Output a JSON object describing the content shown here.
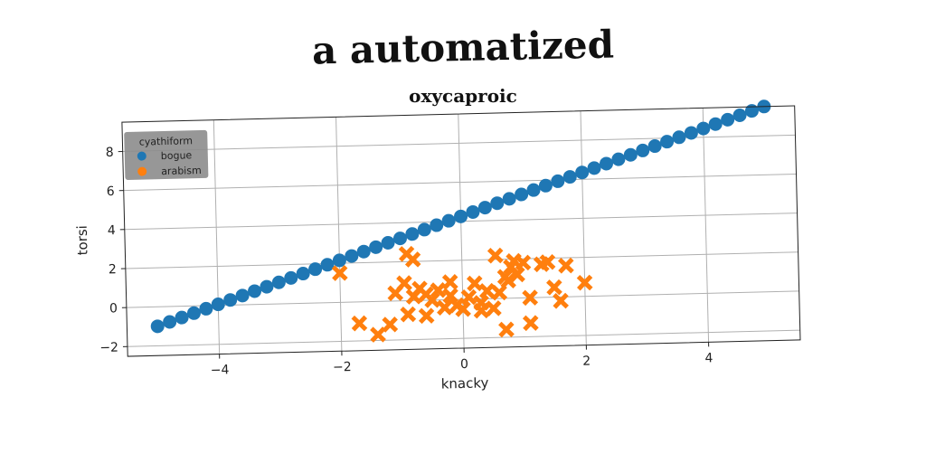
{
  "suptitle": "a automatized",
  "chart_data": {
    "type": "scatter",
    "title": "oxycaproic",
    "xlabel": "knacky",
    "ylabel": "torsi",
    "xlim": [
      -5.5,
      5.5
    ],
    "ylim": [
      -2.5,
      9.5
    ],
    "xticks": [
      -4,
      -2,
      0,
      2,
      4
    ],
    "yticks": [
      -2,
      0,
      2,
      4,
      6,
      8
    ],
    "grid": true,
    "legend": {
      "title": "cyathiform",
      "placement": "top-left"
    },
    "series": [
      {
        "name": "bogue",
        "marker": "circle",
        "color": "#1f77b4",
        "x": [
          -5.0,
          -4.8,
          -4.6,
          -4.4,
          -4.2,
          -4.0,
          -3.8,
          -3.6,
          -3.4,
          -3.2,
          -3.0,
          -2.8,
          -2.6,
          -2.4,
          -2.2,
          -2.0,
          -1.8,
          -1.6,
          -1.4,
          -1.2,
          -1.0,
          -0.8,
          -0.6,
          -0.4,
          -0.2,
          0.0,
          0.2,
          0.4,
          0.6,
          0.8,
          1.0,
          1.2,
          1.4,
          1.6,
          1.8,
          2.0,
          2.2,
          2.4,
          2.6,
          2.8,
          3.0,
          3.2,
          3.4,
          3.6,
          3.8,
          4.0,
          4.2,
          4.4,
          4.6,
          4.8,
          5.0
        ],
        "y": [
          -1.0,
          -0.79,
          -0.58,
          -0.37,
          -0.16,
          0.05,
          0.26,
          0.47,
          0.68,
          0.89,
          1.1,
          1.31,
          1.52,
          1.73,
          1.94,
          2.15,
          2.36,
          2.57,
          2.78,
          2.99,
          3.2,
          3.41,
          3.62,
          3.83,
          4.04,
          4.25,
          4.46,
          4.67,
          4.88,
          5.09,
          5.3,
          5.51,
          5.72,
          5.93,
          6.14,
          6.35,
          6.56,
          6.77,
          6.98,
          7.19,
          7.4,
          7.61,
          7.82,
          8.03,
          8.24,
          8.45,
          8.66,
          8.87,
          9.08,
          9.29,
          9.5
        ]
      },
      {
        "name": "arabism",
        "marker": "x",
        "color": "#ff7f0e",
        "x": [
          -2.0,
          -0.9,
          -0.8,
          -1.7,
          -1.4,
          -1.2,
          -1.1,
          -0.95,
          -0.8,
          -0.7,
          -0.6,
          -0.5,
          -0.4,
          -0.3,
          -0.2,
          -0.1,
          0.0,
          0.1,
          0.2,
          0.3,
          0.4,
          0.5,
          0.55,
          0.6,
          0.7,
          0.8,
          0.85,
          0.9,
          1.0,
          1.1,
          1.3,
          1.4,
          1.5,
          1.6,
          1.7,
          2.0,
          -0.9,
          -0.2,
          0.3,
          0.7,
          1.1,
          0.75,
          -0.6
        ],
        "y": [
          1.5,
          2.4,
          2.1,
          -1.1,
          -1.7,
          -1.2,
          0.4,
          0.9,
          0.2,
          0.6,
          -0.8,
          0.0,
          0.5,
          -0.4,
          0.9,
          -0.3,
          -0.5,
          0.1,
          0.8,
          -0.2,
          0.4,
          -0.5,
          2.2,
          0.3,
          1.1,
          1.6,
          1.9,
          1.2,
          1.8,
          -1.3,
          1.7,
          1.8,
          0.5,
          -0.2,
          1.6,
          0.7,
          -0.7,
          0.2,
          -0.6,
          -1.6,
          0.0,
          0.9,
          0.3
        ]
      }
    ]
  }
}
